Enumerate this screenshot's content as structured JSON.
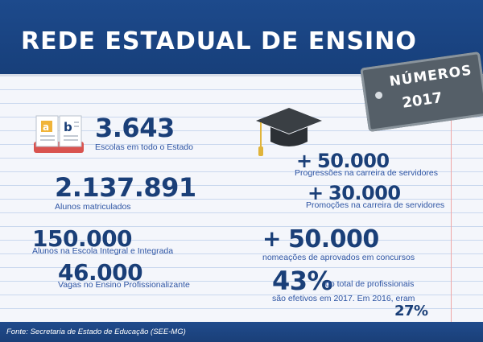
{
  "header": {
    "title": "REDE ESTADUAL DE ENSINO"
  },
  "tag": {
    "line1": "NÚMEROS",
    "line2": "2017"
  },
  "stats_left": [
    {
      "value": "3.643",
      "label": "Escolas em todo o Estado"
    },
    {
      "value": "2.137.891",
      "label": "Alunos matriculados"
    },
    {
      "value": "150.000",
      "label": "Alunos na Escola Integral e Integrada"
    },
    {
      "value": "46.000",
      "label": "Vagas no Ensino Profissionalizante"
    }
  ],
  "stats_right": [
    {
      "prefix": "+",
      "value": "50.000",
      "label": "Progressões na carreira de servidores"
    },
    {
      "prefix": "+",
      "value": "30.000",
      "label": "Promoções na carreira de servidores"
    },
    {
      "prefix": "+",
      "value": "50.000",
      "label": "nomeações de aprovados em concursos"
    }
  ],
  "effective": {
    "value": "43%",
    "text1": "do total de profissionais",
    "text2": "são efetivos em 2017. Em 2016, eram",
    "prev": "27%"
  },
  "icons": {
    "book": "book-icon",
    "cap": "graduation-cap-icon"
  },
  "colors": {
    "navy": "#1a3f78",
    "blue_text": "#2e55a4",
    "tag_gray": "#555f68"
  },
  "footer": {
    "source": "Fonte: Secretaria de Estado de Educação (SEE-MG)"
  }
}
